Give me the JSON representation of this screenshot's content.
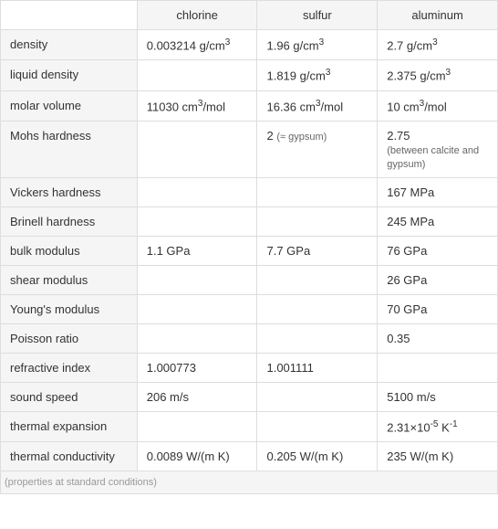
{
  "table": {
    "type": "table",
    "background_color": "#ffffff",
    "header_bg": "#f5f5f5",
    "border_color": "#dddddd",
    "text_color": "#333333",
    "note_color": "#666666",
    "footer_color": "#999999",
    "fontsize": 13,
    "note_fontsize": 11,
    "columns": [
      "",
      "chlorine",
      "sulfur",
      "aluminum"
    ],
    "rows": [
      {
        "prop": "density",
        "chlorine": "0.003214 g/cm",
        "chlorine_sup": "3",
        "sulfur": "1.96 g/cm",
        "sulfur_sup": "3",
        "aluminum": "2.7 g/cm",
        "aluminum_sup": "3"
      },
      {
        "prop": "liquid density",
        "chlorine": "",
        "sulfur": "1.819 g/cm",
        "sulfur_sup": "3",
        "aluminum": "2.375 g/cm",
        "aluminum_sup": "3"
      },
      {
        "prop": "molar volume",
        "chlorine": "11030 cm",
        "chlorine_sup": "3",
        "chlorine_suffix": "/mol",
        "sulfur": "16.36 cm",
        "sulfur_sup": "3",
        "sulfur_suffix": "/mol",
        "aluminum": "10 cm",
        "aluminum_sup": "3",
        "aluminum_suffix": "/mol"
      },
      {
        "prop": "Mohs hardness",
        "chlorine": "",
        "sulfur": "2 ",
        "sulfur_note": "(≈ gypsum)",
        "aluminum": "2.75",
        "aluminum_note": "(between calcite and gypsum)"
      },
      {
        "prop": "Vickers hardness",
        "chlorine": "",
        "sulfur": "",
        "aluminum": "167 MPa"
      },
      {
        "prop": "Brinell hardness",
        "chlorine": "",
        "sulfur": "",
        "aluminum": "245 MPa"
      },
      {
        "prop": "bulk modulus",
        "chlorine": "1.1 GPa",
        "sulfur": "7.7 GPa",
        "aluminum": "76 GPa"
      },
      {
        "prop": "shear modulus",
        "chlorine": "",
        "sulfur": "",
        "aluminum": "26 GPa"
      },
      {
        "prop": "Young's modulus",
        "chlorine": "",
        "sulfur": "",
        "aluminum": "70 GPa"
      },
      {
        "prop": "Poisson ratio",
        "chlorine": "",
        "sulfur": "",
        "aluminum": "0.35"
      },
      {
        "prop": "refractive index",
        "chlorine": "1.000773",
        "sulfur": "1.001111",
        "aluminum": ""
      },
      {
        "prop": "sound speed",
        "chlorine": "206 m/s",
        "sulfur": "",
        "aluminum": "5100 m/s"
      },
      {
        "prop": "thermal expansion",
        "chlorine": "",
        "sulfur": "",
        "aluminum_html": "2.31×10<sup>-5</sup> K<sup>-1</sup>"
      },
      {
        "prop": "thermal conductivity",
        "chlorine": "0.0089 W/(m K)",
        "sulfur": "0.205 W/(m K)",
        "aluminum": "235 W/(m K)"
      }
    ],
    "footer": "(properties at standard conditions)"
  }
}
